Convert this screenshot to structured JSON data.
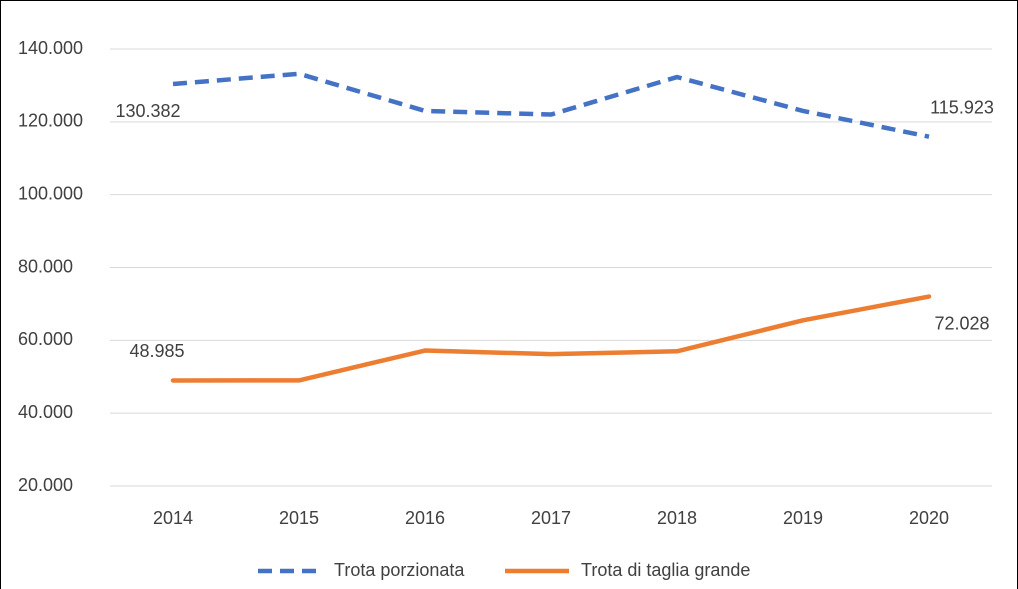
{
  "chart_data": {
    "type": "line",
    "categories": [
      "2014",
      "2015",
      "2016",
      "2017",
      "2018",
      "2019",
      "2020"
    ],
    "series": [
      {
        "name": "Trota porzionata",
        "color": "#4472c4",
        "dash": true,
        "values": [
          130382,
          133200,
          123000,
          122000,
          132300,
          123000,
          115923
        ],
        "value_labels": [
          "130.382",
          null,
          null,
          null,
          null,
          null,
          "115.923"
        ]
      },
      {
        "name": "Trota di taglia grande",
        "color": "#ed7d31",
        "dash": false,
        "values": [
          48985,
          49000,
          57200,
          56200,
          57000,
          65500,
          72028
        ],
        "value_labels": [
          "48.985",
          null,
          null,
          null,
          null,
          null,
          "72.028"
        ]
      }
    ],
    "ylim": [
      20000,
      140000
    ],
    "yticks": [
      {
        "value": 20000,
        "label": "20.000"
      },
      {
        "value": 40000,
        "label": "40.000"
      },
      {
        "value": 60000,
        "label": "60.000"
      },
      {
        "value": 80000,
        "label": "80.000"
      },
      {
        "value": 100000,
        "label": "100.000"
      },
      {
        "value": 120000,
        "label": "120.000"
      },
      {
        "value": 140000,
        "label": "140.000"
      }
    ],
    "grid": true,
    "legend": "bottom"
  }
}
